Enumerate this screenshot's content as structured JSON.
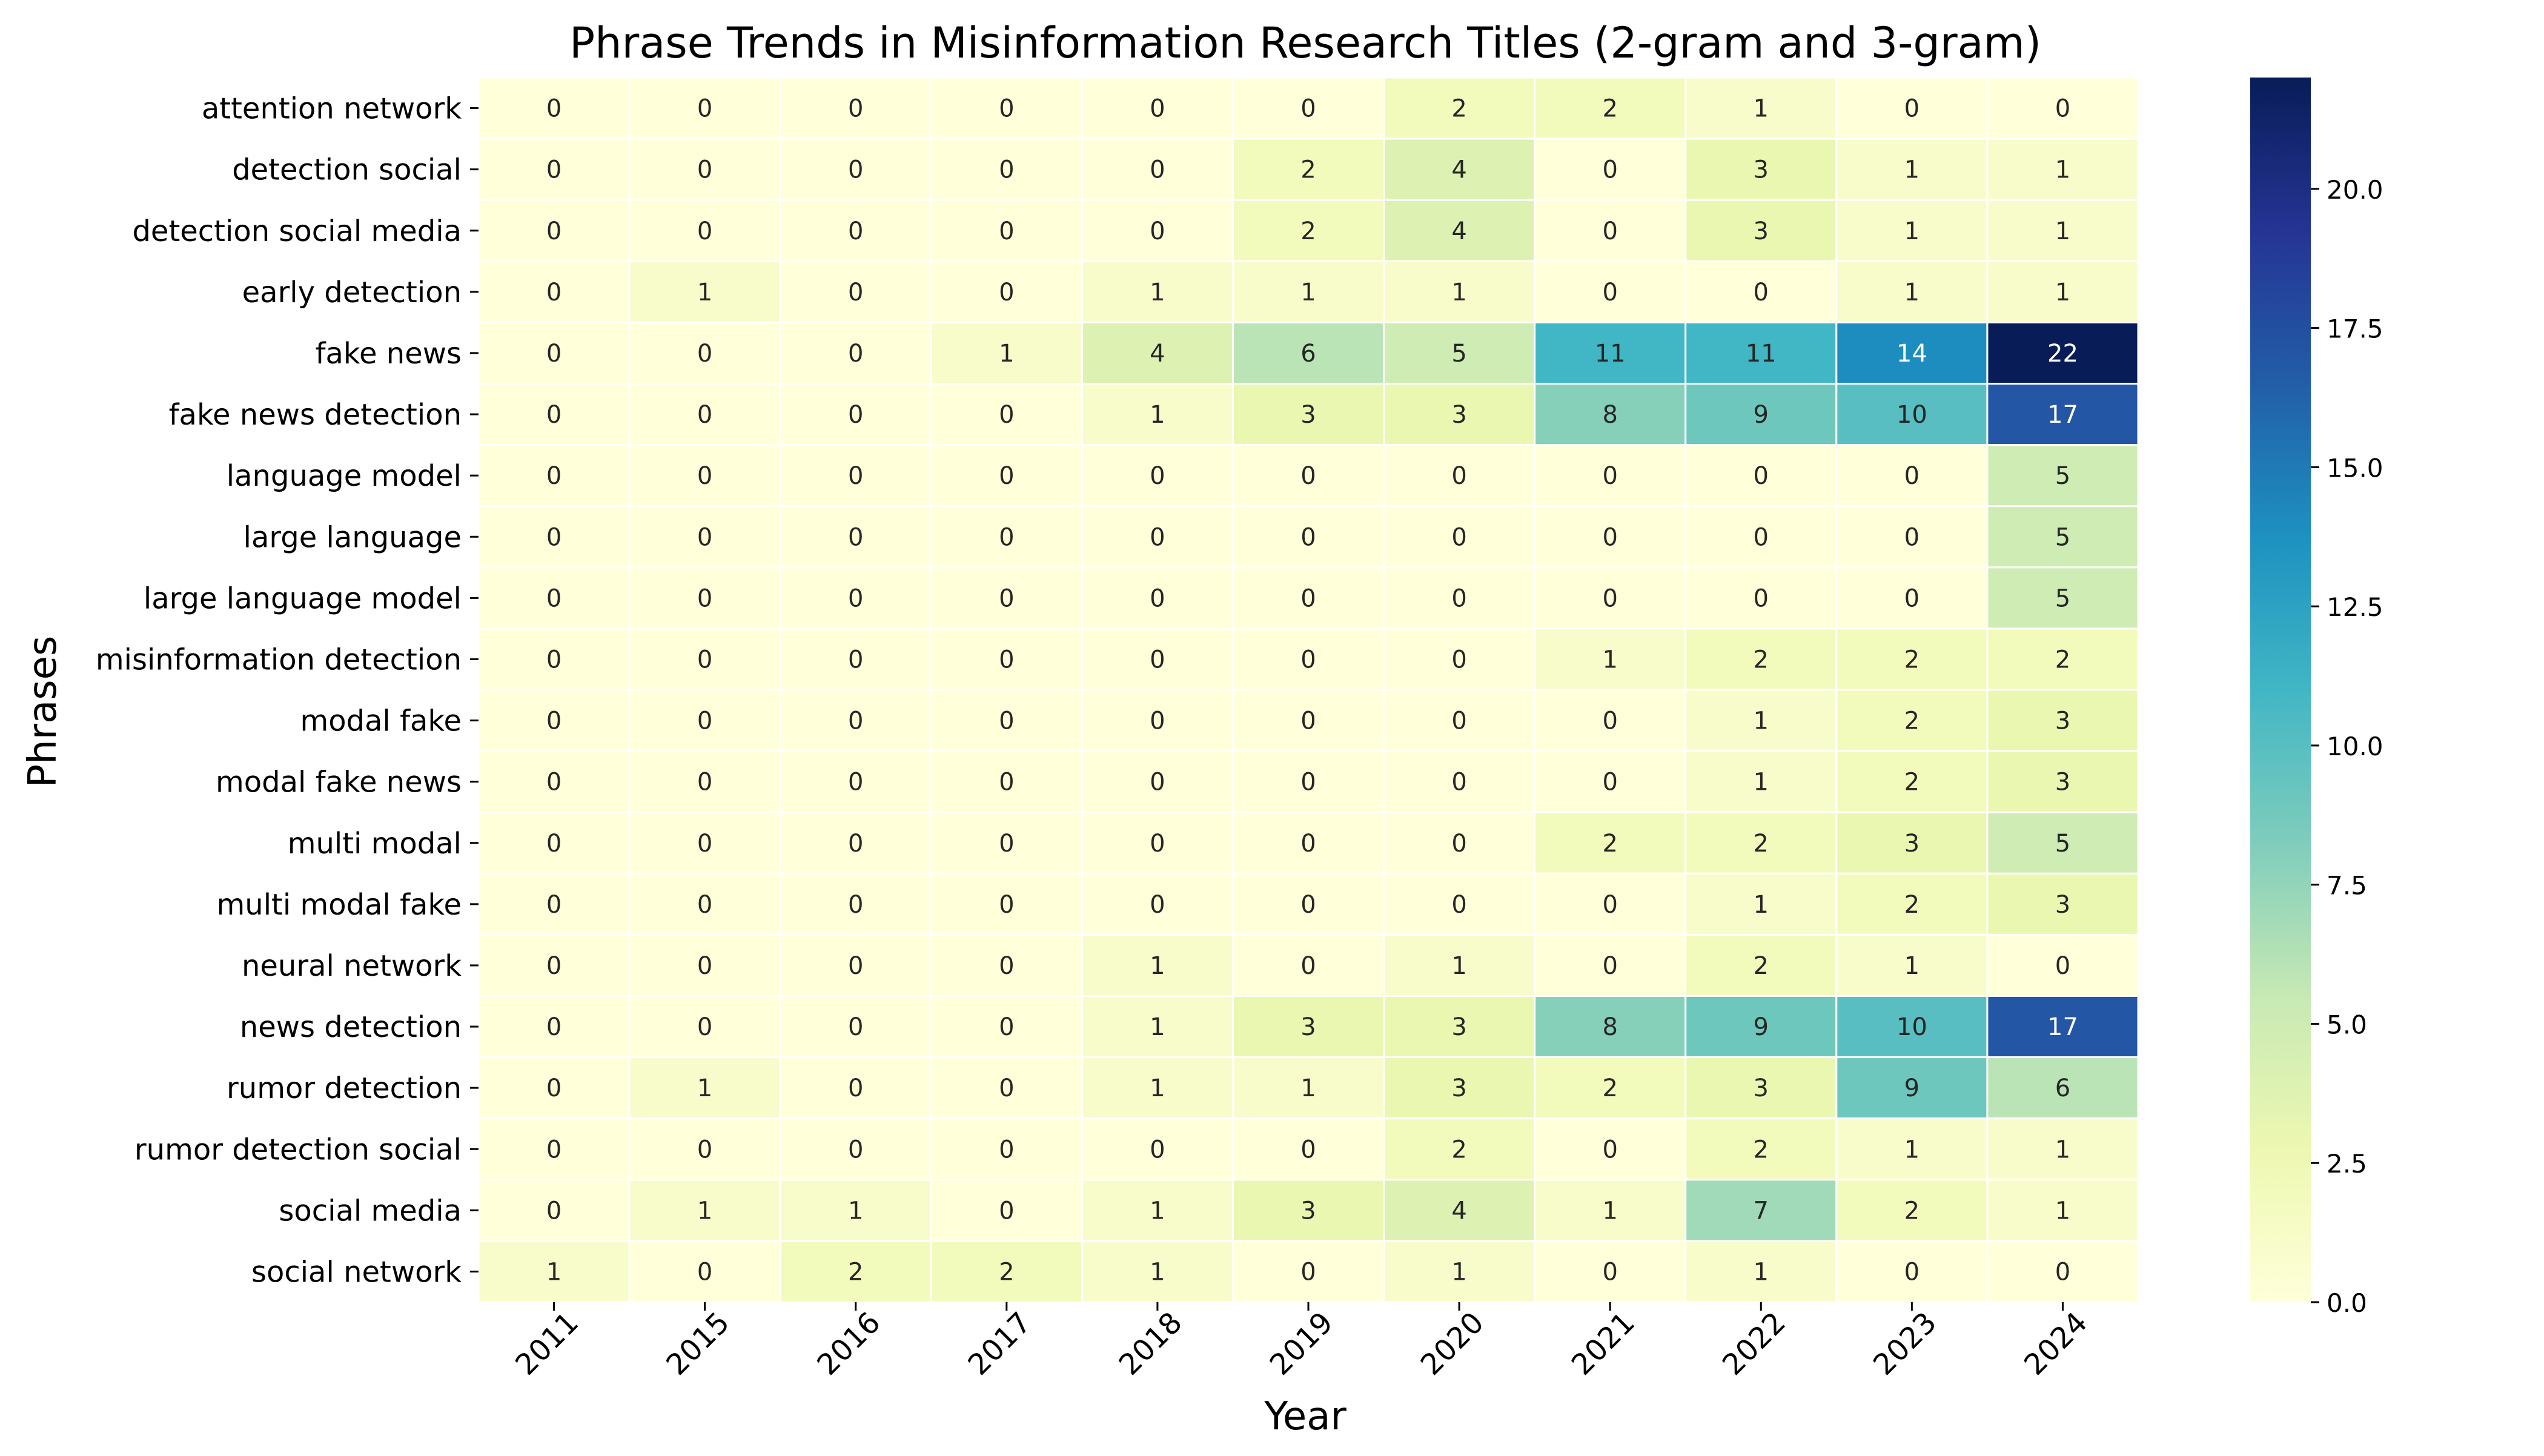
{
  "chart_data": {
    "type": "heatmap",
    "title": "Phrase Trends in Misinformation Research Titles (2-gram and 3-gram)",
    "xlabel": "Year",
    "ylabel": "Phrases",
    "x": [
      "2011",
      "2015",
      "2016",
      "2017",
      "2018",
      "2019",
      "2020",
      "2021",
      "2022",
      "2023",
      "2024"
    ],
    "y": [
      "attention network",
      "detection social",
      "detection social media",
      "early detection",
      "fake news",
      "fake news detection",
      "language model",
      "large language",
      "large language model",
      "misinformation detection",
      "modal fake",
      "modal fake news",
      "multi modal",
      "multi modal fake",
      "neural network",
      "news detection",
      "rumor detection",
      "rumor detection social",
      "social media",
      "social network"
    ],
    "values": [
      [
        0,
        0,
        0,
        0,
        0,
        0,
        2,
        2,
        1,
        0,
        0
      ],
      [
        0,
        0,
        0,
        0,
        0,
        2,
        4,
        0,
        3,
        1,
        1
      ],
      [
        0,
        0,
        0,
        0,
        0,
        2,
        4,
        0,
        3,
        1,
        1
      ],
      [
        0,
        1,
        0,
        0,
        1,
        1,
        1,
        0,
        0,
        1,
        1
      ],
      [
        0,
        0,
        0,
        1,
        4,
        6,
        5,
        11,
        11,
        14,
        22
      ],
      [
        0,
        0,
        0,
        0,
        1,
        3,
        3,
        8,
        9,
        10,
        17
      ],
      [
        0,
        0,
        0,
        0,
        0,
        0,
        0,
        0,
        0,
        0,
        5
      ],
      [
        0,
        0,
        0,
        0,
        0,
        0,
        0,
        0,
        0,
        0,
        5
      ],
      [
        0,
        0,
        0,
        0,
        0,
        0,
        0,
        0,
        0,
        0,
        5
      ],
      [
        0,
        0,
        0,
        0,
        0,
        0,
        0,
        1,
        2,
        2,
        2
      ],
      [
        0,
        0,
        0,
        0,
        0,
        0,
        0,
        0,
        1,
        2,
        3
      ],
      [
        0,
        0,
        0,
        0,
        0,
        0,
        0,
        0,
        1,
        2,
        3
      ],
      [
        0,
        0,
        0,
        0,
        0,
        0,
        0,
        2,
        2,
        3,
        5
      ],
      [
        0,
        0,
        0,
        0,
        0,
        0,
        0,
        0,
        1,
        2,
        3
      ],
      [
        0,
        0,
        0,
        0,
        1,
        0,
        1,
        0,
        2,
        1,
        0
      ],
      [
        0,
        0,
        0,
        0,
        1,
        3,
        3,
        8,
        9,
        10,
        17
      ],
      [
        0,
        1,
        0,
        0,
        1,
        1,
        3,
        2,
        3,
        9,
        6
      ],
      [
        0,
        0,
        0,
        0,
        0,
        0,
        2,
        0,
        2,
        1,
        1
      ],
      [
        0,
        1,
        1,
        0,
        1,
        3,
        4,
        1,
        7,
        2,
        1
      ],
      [
        1,
        0,
        2,
        2,
        1,
        0,
        1,
        0,
        1,
        0,
        0
      ]
    ],
    "vmin": 0,
    "vmax": 22,
    "colormap": "YlGnBu",
    "colorbar_ticks": [
      "0.0",
      "2.5",
      "5.0",
      "7.5",
      "10.0",
      "12.5",
      "15.0",
      "17.5",
      "20.0"
    ],
    "grid": false
  }
}
